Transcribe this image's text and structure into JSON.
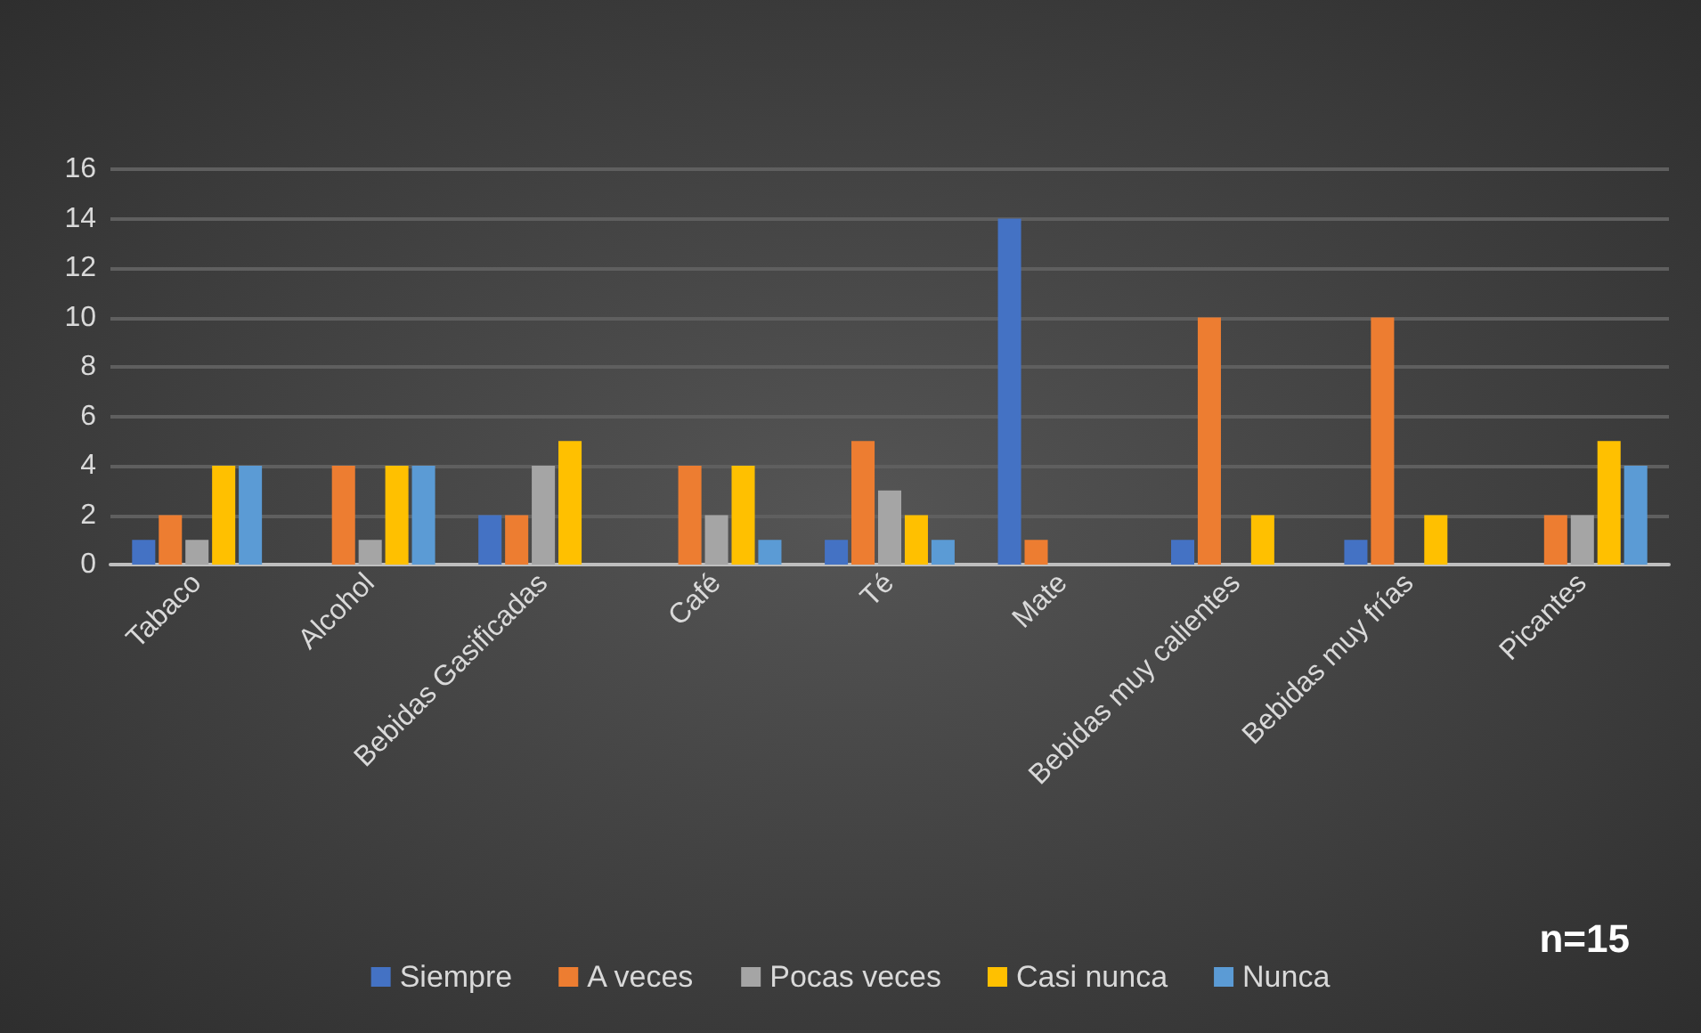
{
  "chart_data": {
    "type": "bar",
    "categories": [
      "Tabaco",
      "Alcohol",
      "Bebidas Gasificadas",
      "Café",
      "Té",
      "Mate",
      "Bebidas muy calientes",
      "Bebidas muy frías",
      "Picantes"
    ],
    "series": [
      {
        "name": "Siempre",
        "color": "#4472c4",
        "values": [
          1,
          0,
          2,
          0,
          1,
          14,
          1,
          1,
          0
        ]
      },
      {
        "name": "A veces",
        "color": "#ed7d31",
        "values": [
          2,
          4,
          2,
          4,
          5,
          1,
          10,
          10,
          2
        ]
      },
      {
        "name": "Pocas veces",
        "color": "#a5a5a5",
        "values": [
          1,
          1,
          4,
          2,
          3,
          0,
          0,
          0,
          2
        ]
      },
      {
        "name": "Casi nunca",
        "color": "#ffc000",
        "values": [
          4,
          4,
          5,
          4,
          2,
          0,
          2,
          2,
          5
        ]
      },
      {
        "name": "Nunca",
        "color": "#5b9bd5",
        "values": [
          4,
          4,
          0,
          1,
          1,
          0,
          0,
          0,
          4
        ]
      }
    ],
    "ylim": [
      0,
      16
    ],
    "yticks": [
      0,
      2,
      4,
      6,
      8,
      10,
      12,
      14,
      16
    ],
    "grid": "y",
    "legend": "bottom",
    "annotations": [
      "n=15"
    ]
  }
}
